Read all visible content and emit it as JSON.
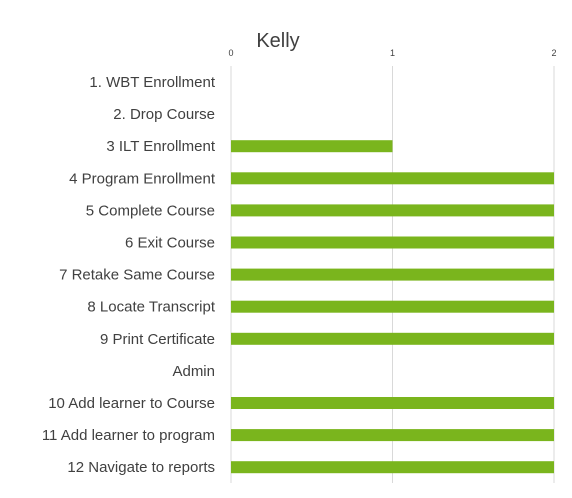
{
  "chart_data": {
    "type": "bar",
    "orientation": "horizontal",
    "title": "Kelly",
    "xlim": [
      0,
      2
    ],
    "xticks": [
      "0",
      "1",
      "2"
    ],
    "grid": true,
    "legend": "none",
    "bar_color": "#7ab51d",
    "categories": [
      "1. WBT Enrollment",
      "2. Drop Course",
      "3  ILT Enrollment",
      "4 Program Enrollment",
      "5 Complete Course",
      "6 Exit Course",
      "7 Retake Same Course",
      "8 Locate Transcript",
      "9 Print Certificate",
      "Admin",
      "10 Add learner to Course",
      "11 Add learner to program",
      "12 Navigate to reports"
    ],
    "values": [
      0,
      0,
      1,
      2,
      2,
      2,
      2,
      2,
      2,
      0,
      2,
      2,
      2
    ]
  }
}
